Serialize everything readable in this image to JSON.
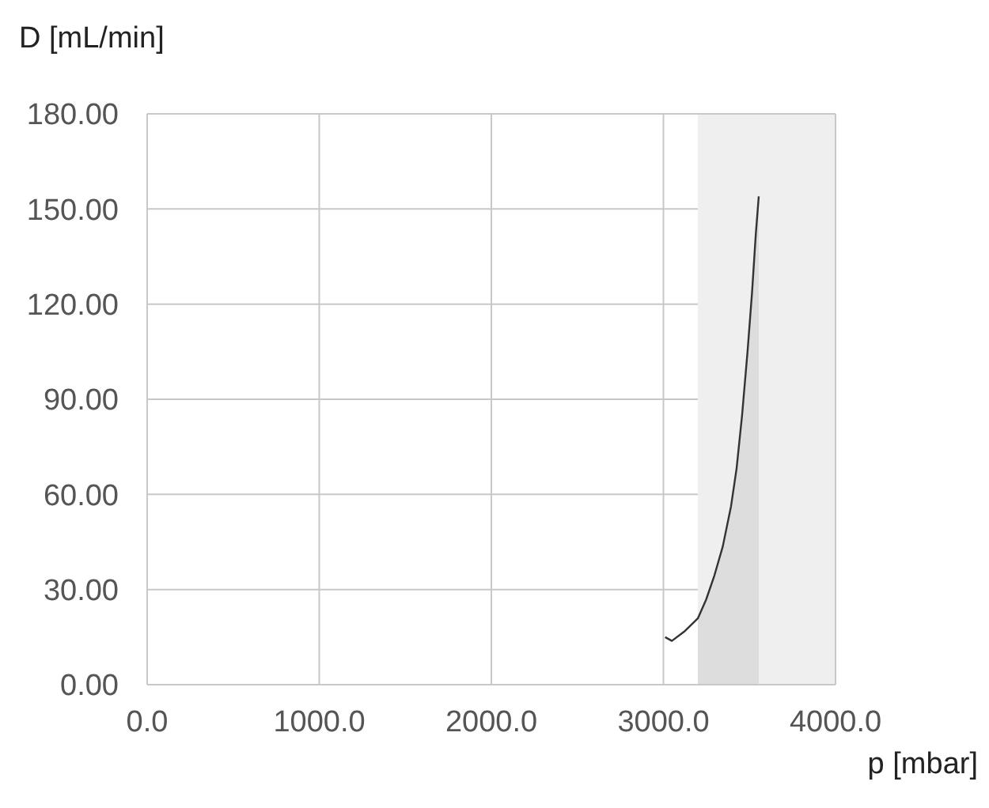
{
  "chart_data": {
    "type": "line",
    "xlabel": "p [mbar]",
    "ylabel": "D [mL/min]",
    "xlim": [
      0,
      4000
    ],
    "xticks": [
      {
        "value": 0,
        "label": "0.0"
      },
      {
        "value": 1000,
        "label": "1000.0"
      },
      {
        "value": 2000,
        "label": "2000.0"
      },
      {
        "value": 3000,
        "label": "3000.0"
      },
      {
        "value": 4000,
        "label": "4000.0"
      }
    ],
    "ylim": [
      0,
      180
    ],
    "yticks": [
      {
        "value": 0,
        "label": "0.00"
      },
      {
        "value": 30,
        "label": "30.00"
      },
      {
        "value": 60,
        "label": "60.00"
      },
      {
        "value": 90,
        "label": "90.00"
      },
      {
        "value": 120,
        "label": "120.00"
      },
      {
        "value": 150,
        "label": "150.00"
      },
      {
        "value": 180,
        "label": "180.00"
      }
    ],
    "grid": true,
    "marker": "none",
    "bands": [
      {
        "axis": "x",
        "from": 3200,
        "to": 4000,
        "color": "#efefef"
      }
    ],
    "series": [
      {
        "type": "area",
        "color": "#dddddd",
        "x": [
          3200,
          3248,
          3296,
          3345,
          3393,
          3425,
          3457,
          3489,
          3515,
          3537,
          3554
        ],
        "values": [
          20.9,
          26.8,
          34.4,
          43.6,
          56.3,
          68.1,
          84.9,
          105.2,
          123.7,
          142.2,
          154.0
        ]
      },
      {
        "color": "#333333",
        "x": [
          3010,
          3049,
          3120,
          3200,
          3248,
          3296,
          3345,
          3393,
          3425,
          3457,
          3489,
          3515,
          3537,
          3554
        ],
        "values": [
          15.0,
          13.8,
          16.7,
          20.9,
          26.8,
          34.4,
          43.6,
          56.3,
          68.1,
          84.9,
          105.2,
          123.7,
          142.2,
          154.0
        ]
      }
    ]
  }
}
